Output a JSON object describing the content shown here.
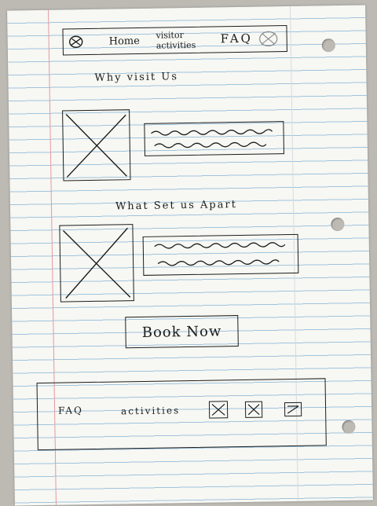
{
  "nav": {
    "home_label": "Home",
    "visitor_label": "visitor",
    "activities_label": "activities",
    "faq_label": "FAQ"
  },
  "sections": [
    {
      "title": "Why visit Us"
    },
    {
      "title": "What Set us Apart"
    }
  ],
  "cta": {
    "label": "Book Now"
  },
  "footer": {
    "faq_label": "FAQ",
    "activities_label": "activities",
    "icons": [
      "social-icon",
      "social-icon",
      "social-icon"
    ]
  },
  "colors": {
    "ink": "#1c1c1c",
    "paper": "#f7f7f3",
    "rule": "#9fc3dc",
    "margin": "#e29aa2"
  }
}
